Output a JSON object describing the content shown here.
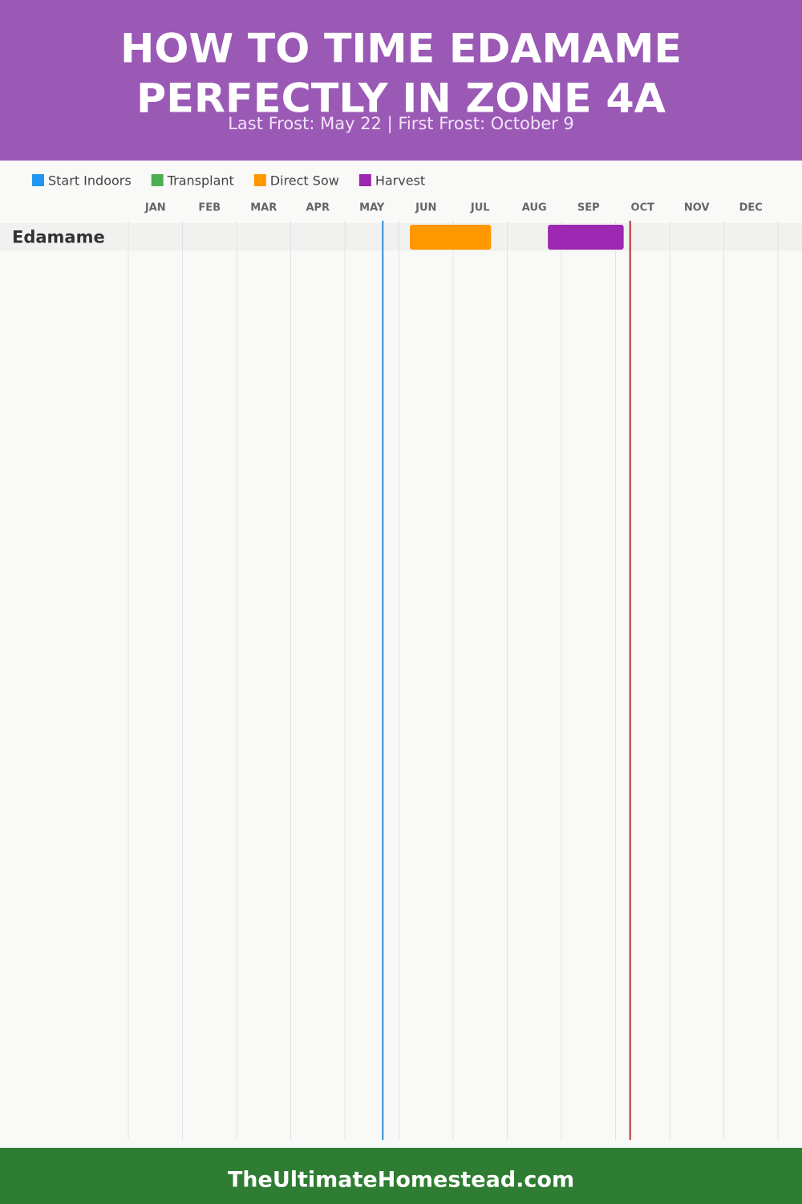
{
  "chart_data": {
    "type": "gantt",
    "title_lines": [
      "HOW TO TIME EDAMAME",
      "PERFECTLY IN ZONE 4A"
    ],
    "subtitle": "Last Frost: May 22 | First Frost: October 9",
    "series": [
      {
        "name": "Start Indoors",
        "color": "#2196f3"
      },
      {
        "name": "Transplant",
        "color": "#4caf50"
      },
      {
        "name": "Direct Sow",
        "color": "#ff9800"
      },
      {
        "name": "Harvest",
        "color": "#9c27b0"
      }
    ],
    "categories": [
      "JAN",
      "FEB",
      "MAR",
      "APR",
      "MAY",
      "JUN",
      "JUL",
      "AUG",
      "SEP",
      "OCT",
      "NOV",
      "DEC"
    ],
    "xlim": [
      0,
      12
    ],
    "rows": [
      {
        "name": "Edamame",
        "bars": [
          {
            "series": 2,
            "start": 5.2,
            "end": 6.7
          },
          {
            "series": 3,
            "start": 7.75,
            "end": 9.15
          }
        ]
      }
    ],
    "frost_lines": [
      {
        "value": 4.7,
        "color": "#2a8fd6"
      },
      {
        "value": 9.27,
        "color": "#b03030"
      }
    ],
    "grid": true,
    "footer": "TheUltimateHomestead.com"
  }
}
